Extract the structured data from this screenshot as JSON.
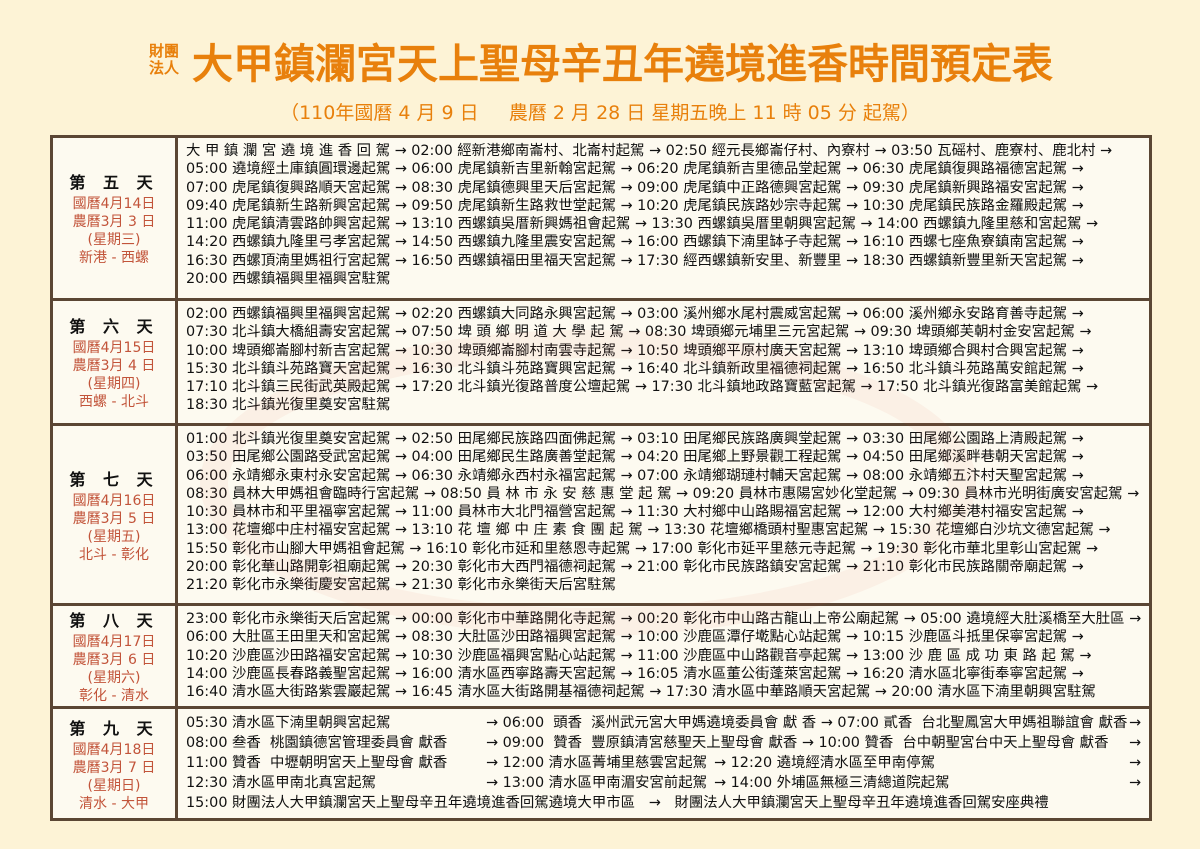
{
  "header": {
    "org": "財團法人",
    "title": "大甲鎮瀾宮天上聖母辛丑年遶境進香時間預定表",
    "subtitle": "（110年國曆 4 月 9 日     農曆 2 月 28 日 星期五晚上 11 時 05 分 起駕）"
  },
  "colors": {
    "title": "#e8800c",
    "border": "#5b4634",
    "day_info": "#c2543a",
    "background": "#fdf3d6"
  },
  "days": [
    {
      "title": "第 五 天",
      "solar": "國曆4月14日",
      "lunar": "農曆3月 3 日",
      "weekday": "(星期三)",
      "route": "新港 - 西螺",
      "lines": [
        "大 甲 鎮 瀾 宮 遶 境 進 香 回 駕 → 02:00 經新港鄉南崙村、北崙村起駕 → 02:50 經元長鄉崙仔村、內寮村 → 03:50 瓦磘村、鹿寮村、鹿北村 →",
        "05:00 遶境經土庫鎮圓環邊起駕 → 06:00 虎尾鎮新吉里新翰宮起駕 → 06:20 虎尾鎮新吉里德品堂起駕 → 06:30 虎尾鎮復興路福德宮起駕 →",
        "07:00 虎尾鎮復興路順天宮起駕 → 08:30 虎尾鎮德興里天后宮起駕 → 09:00 虎尾鎮中正路德興宮起駕 → 09:30 虎尾鎮新興路福安宮起駕 →",
        "09:40 虎尾鎮新生路新興宮起駕 → 09:50 虎尾鎮新生路救世堂起駕 → 10:20 虎尾鎮民族路妙宗寺起駕 → 10:30 虎尾鎮民族路金羅殿起駕 →",
        "11:00 虎尾鎮清雲路帥興宮起駕 → 13:10 西螺鎮吳厝新興媽祖會起駕 → 13:30 西螺鎮吳厝里朝興宮起駕 → 14:00 西螺鎮九隆里慈和宮起駕 →",
        "14:20 西螺鎮九隆里弓孝宮起駕 → 14:50 西螺鎮九隆里震安宮起駕 → 16:00 西螺鎮下湳里缽子寺起駕 → 16:10 西螺七座魚寮鎮南宮起駕 →",
        "16:30 西螺頂湳里媽祖行宮起駕 → 16:50 西螺鎮福田里福天宮起駕 → 17:30 經西螺鎮新安里、新豐里 → 18:30 西螺鎮新豐里新天宮起駕 →",
        "20:00 西螺鎮福興里福興宮駐駕"
      ]
    },
    {
      "title": "第 六 天",
      "solar": "國曆4月15日",
      "lunar": "農曆3月 4 日",
      "weekday": "(星期四)",
      "route": "西螺 - 北斗",
      "lines": [
        "02:00 西螺鎮福興里福興宮起駕 →  02:20 西螺鎮大同路永興宮起駕 → 03:00 溪州鄉水尾村震威宮起駕 → 06:00 溪州鄉永安路育善寺起駕 →",
        "07:30 北斗鎮大橋組壽安宮起駕 →  07:50 埤 頭 鄉 明 道 大 學 起 駕 → 08:30 埤頭鄉元埔里三元宮起駕 → 09:30 埤頭鄉芙朝村金安宮起駕 →",
        "10:00 埤頭鄉崙腳村新吉宮起駕 → 10:30 埤頭鄉崙腳村南雲寺起駕 → 10:50 埤頭鄉平原村廣天宮起駕 → 13:10 埤頭鄉合興村合興宮起駕 →",
        "15:30 北斗鎮斗苑路寶天宮起駕 → 16:30 北斗鎮斗苑路寶興宮起駕 → 16:40 北斗鎮新政里福德祠起駕 → 16:50 北斗鎮斗苑路萬安館起駕 →",
        "17:10 北斗鎮三民街武英殿起駕 → 17:20 北斗鎮光復路普度公壇起駕 → 17:30 北斗鎮地政路寶藍宮起駕 → 17:50 北斗鎮光復路富美館起駕 →",
        "18:30 北斗鎮光復里奠安宮駐駕"
      ]
    },
    {
      "title": "第 七 天",
      "solar": "國曆4月16日",
      "lunar": "農曆3月 5 日",
      "weekday": "(星期五)",
      "route": "北斗 - 彰化",
      "lines": [
        "01:00 北斗鎮光復里奠安宮起駕 → 02:50 田尾鄉民族路四面佛起駕 → 03:10 田尾鄉民族路廣興堂起駕 → 03:30 田尾鄉公園路上清殿起駕 →",
        "03:50 田尾鄉公園路受武宮起駕 → 04:00 田尾鄉民生路廣善堂起駕 → 04:20 田尾鄉上野景觀工程起駕 → 04:50 田尾鄉溪畔巷朝天宮起駕 →",
        "06:00 永靖鄉永東村永安宮起駕 → 06:30 永靖鄉永西村永福宮起駕 → 07:00 永靖鄉瑚璉村輔天宮起駕 → 08:00 永靖鄉五汴村天聖宮起駕 →",
        "08:30 員林大甲媽祖會臨時行宮起駕 → 08:50 員 林 市 永 安 慈 惠 堂 起 駕 → 09:20 員林市惠陽宮妙化堂起駕 → 09:30 員林市光明街廣安宮起駕 →",
        "10:30 員林市和平里福寧宮起駕 → 11:00 員林市大北門福營宮起駕 → 11:30 大村鄉中山路賜福宮起駕 → 12:00 大村鄉美港村福安宮起駕 →",
        "13:00 花壇鄉中庄村福安宮起駕 → 13:10 花 壇 鄉 中 庄 素 食 團 起 駕 → 13:30 花壇鄉橋頭村聖惠宮起駕 → 15:30 花壇鄉白沙坑文德宮起駕 →",
        "15:50 彰化市山腳大甲媽祖會起駕 → 16:10 彰化市延和里慈恩寺起駕 → 17:00 彰化市延平里慈元寺起駕 → 19:30 彰化市華北里彰山宮起駕 →",
        "20:00 彰化華山路開彰祖廟起駕 → 20:30 彰化市大西門福德祠起駕 → 21:00 彰化市民族路鎮安宮起駕 → 21:10 彰化市民族路關帝廟起駕 →",
        "21:20 彰化市永樂街慶安宮起駕 → 21:30 彰化市永樂街天后宮駐駕"
      ]
    },
    {
      "title": "第 八 天",
      "solar": "國曆4月17日",
      "lunar": "農曆3月 6 日",
      "weekday": "(星期六)",
      "route": "彰化 - 清水",
      "lines": [
        "23:00 彰化市永樂街天后宮起駕 → 00:00 彰化市中華路開化寺起駕 → 00:20 彰化市中山路古龍山上帝公廟起駕 → 05:00 遶境經大肚溪橋至大肚區 →",
        "06:00 大肚區王田里天和宮起駕 → 08:30 大肚區沙田路福興宮起駕 → 10:00 沙鹿區潭仔墘點心站起駕 → 10:15 沙鹿區斗抵里保寧宮起駕 →",
        "10:20 沙鹿區沙田路福安宮起駕 → 10:30 沙鹿區福興宮點心站起駕 → 11:00 沙鹿區中山路觀音亭起駕 → 13:00 沙 鹿 區 成 功 東 路 起 駕 →",
        "14:00 沙鹿區長春路義聖宮起駕 → 16:00 清水區西寧路壽天宮起駕 → 16:05 清水區董公街蓬萊宮起駕 → 16:20 清水區北寧街奉寧宮起駕 →",
        "16:40 清水區大街路紫雲巖起駕 → 16:45 清水區大街路開基福德祠起駕 → 17:30 清水區中華路順天宮起駕 → 20:00 清水區下湳里朝興宮駐駕"
      ]
    },
    {
      "title": "第 九 天",
      "solar": "國曆4月18日",
      "lunar": "農曆3月 7 日",
      "weekday": "(星期日)",
      "route": "清水 - 大甲",
      "rows": [
        {
          "segments": [
            "05:30 清水區下湳里朝興宮起駕",
            "→ 06:00  頭香  溪州武元宮大甲媽遶境委員會 獻 香 ",
            "→ 07:00 貳香  台北聖鳳宮大甲媽祖聯誼會 獻香"
          ],
          "end": "→"
        },
        {
          "segments": [
            "08:00 叁香  桃園鎮德宮管理委員會 獻香 ",
            "→ 09:00  贊香  豐原鎮清宮慈聖天上聖母會 獻香 ",
            "→ 10:00 贊香  台中朝聖宮台中天上聖母會 獻香"
          ],
          "end": "→"
        },
        {
          "segments": [
            "11:00 贊香  中壢朝明宮天上聖母會 獻香 ",
            "→ 12:00 清水區菁埔里慈雲宮起駕",
            "→ 12:20 遶境經清水區至甲南停駕"
          ],
          "end": "→"
        },
        {
          "segments": [
            "12:30 清水區甲南北真宮起駕",
            "→ 13:00 清水區甲南湄安宮前起駕",
            "→ 14:00 外埔區無極三清總道院起駕"
          ],
          "end": "→"
        },
        {
          "segments": [
            "15:00 財團法人大甲鎮瀾宮天上聖母辛丑年遶境進香回駕遶境大甲市區",
            "   →   財團法人大甲鎮瀾宮天上聖母辛丑年遶境進香回駕安座典禮"
          ],
          "end": ""
        }
      ]
    }
  ]
}
